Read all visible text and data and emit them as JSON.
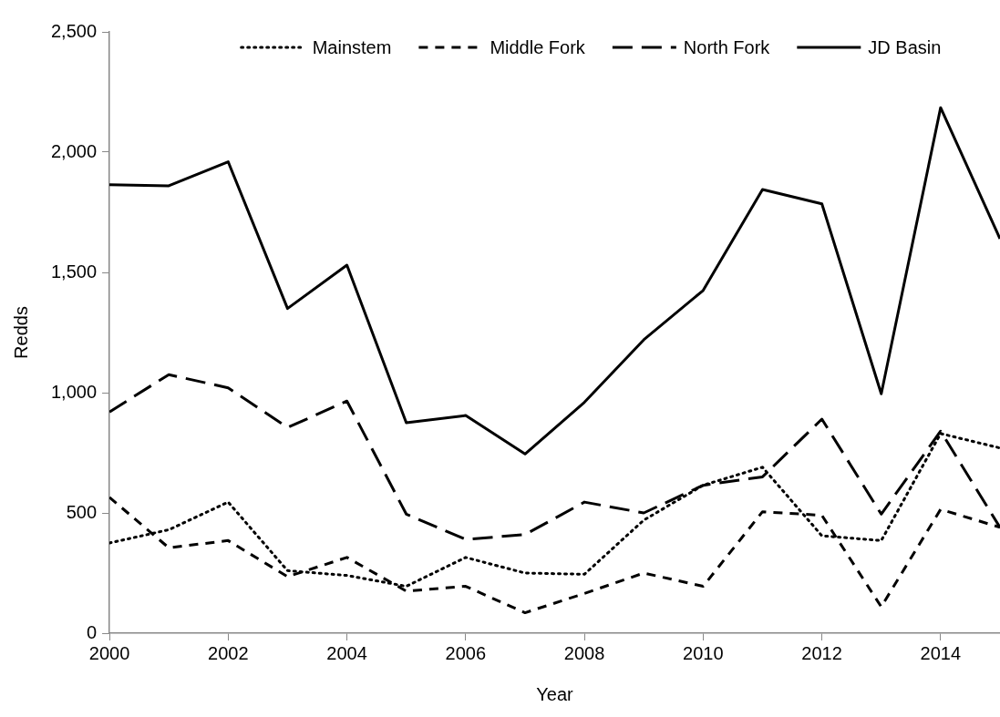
{
  "chart_data": {
    "type": "line",
    "xlabel": "Year",
    "ylabel": "Redds",
    "x": [
      2000,
      2001,
      2002,
      2003,
      2004,
      2005,
      2006,
      2007,
      2008,
      2009,
      2010,
      2011,
      2012,
      2013,
      2014,
      2015
    ],
    "series": [
      {
        "name": "Mainstem",
        "color": "#000000",
        "line_style": "dotted",
        "values": [
          375,
          430,
          545,
          260,
          240,
          195,
          315,
          250,
          245,
          470,
          615,
          690,
          405,
          385,
          830,
          770
        ]
      },
      {
        "name": "Middle Fork",
        "color": "#000000",
        "line_style": "dashed",
        "values": [
          565,
          355,
          385,
          235,
          315,
          175,
          195,
          85,
          165,
          250,
          195,
          505,
          490,
          110,
          515,
          440
        ]
      },
      {
        "name": "North Fork",
        "color": "#000000",
        "line_style": "dashed",
        "values": [
          920,
          1075,
          1020,
          855,
          965,
          495,
          390,
          410,
          545,
          500,
          615,
          650,
          890,
          495,
          840,
          440
        ]
      },
      {
        "name": "JD Basin",
        "color": "#000000",
        "line_style": "solid",
        "values": [
          1865,
          1860,
          1960,
          1350,
          1530,
          875,
          905,
          745,
          960,
          1220,
          1425,
          1845,
          1785,
          995,
          2185,
          1640
        ]
      }
    ],
    "xlim": [
      2000,
      2015
    ],
    "xticks": [
      2000,
      2002,
      2004,
      2006,
      2008,
      2010,
      2012,
      2014
    ],
    "ylim": [
      0,
      2500
    ],
    "yticks": [
      0,
      500,
      {
        "value": 1000,
        "label": "1,000"
      },
      {
        "value": 1500,
        "label": "1,500"
      },
      {
        "value": 2000,
        "label": "2,000"
      },
      {
        "value": 2500,
        "label": "2,500"
      }
    ],
    "grid": false,
    "legend": "top",
    "marker": "none"
  }
}
